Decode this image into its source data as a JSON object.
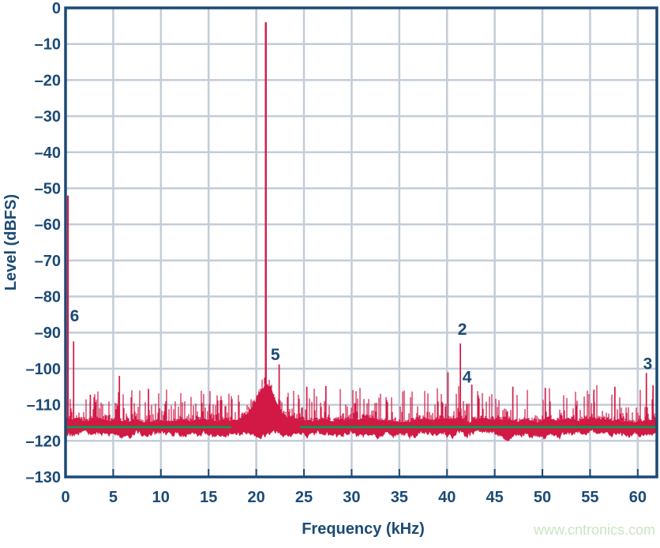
{
  "watermark": "www.cntronics.com",
  "colors": {
    "axis": "#1b4a75",
    "grid": "#c3ccd9",
    "trace": "#d21845",
    "avg_noise_line": "#00a14d",
    "watermark": "#c9e6c2",
    "background": "#ffffff"
  },
  "chart_data": {
    "type": "line",
    "subtype": "fft-noise-spectrum",
    "title": "",
    "xlabel": "Frequency (kHz)",
    "ylabel": "Level (dBFS)",
    "xlim": [
      0,
      62
    ],
    "ylim": [
      -130,
      0
    ],
    "grid": true,
    "legend": null,
    "x_ticks": [
      0,
      5,
      10,
      15,
      20,
      25,
      30,
      35,
      40,
      45,
      50,
      55,
      60
    ],
    "x_tick_labels": [
      "0",
      "5",
      "10",
      "15",
      "20",
      "25",
      "30",
      "35",
      "40",
      "45",
      "50",
      "55",
      "60"
    ],
    "y_ticks": [
      0,
      -10,
      -20,
      -30,
      -40,
      -50,
      -60,
      -70,
      -80,
      -90,
      -100,
      -110,
      -120,
      -130
    ],
    "y_tick_labels": [
      "0",
      "–10",
      "–20",
      "–30",
      "–40",
      "–50",
      "–60",
      "–70",
      "–80",
      "–90",
      "–100",
      "–110",
      "–120",
      "–130"
    ],
    "series": [
      {
        "name": "fft-spectrum",
        "color": "#d21845",
        "carrier": {
          "freq_khz": 21.0,
          "level_dbfs": -4.0
        },
        "dc_spike": {
          "freq_khz": 0.25,
          "level_dbfs": -52.0
        },
        "noise_floor": {
          "solid_top_dbfs": -114.1,
          "solid_bottom_dbfs": -118.2,
          "max_spike_dbfs": -104.5
        },
        "skirt": {
          "center_khz": 21.0,
          "peak_dbfs": -104.5,
          "sigma_khz": 1.05,
          "extent_khz": 3.6
        },
        "spurs": [
          {
            "freq_khz": 0.85,
            "level_dbfs": -92.4,
            "label": "6",
            "label_at": [
              0.95,
              -85.2
            ]
          },
          {
            "freq_khz": 2.6,
            "level_dbfs": -107.2
          },
          {
            "freq_khz": 5.65,
            "level_dbfs": -102.0
          },
          {
            "freq_khz": 8.7,
            "level_dbfs": -105.6
          },
          {
            "freq_khz": 22.4,
            "level_dbfs": -98.8,
            "label": "5",
            "label_at": [
              22.0,
              -96.0
            ]
          },
          {
            "freq_khz": 25.3,
            "level_dbfs": -105.0
          },
          {
            "freq_khz": 27.3,
            "level_dbfs": -104.8
          },
          {
            "freq_khz": 40.1,
            "level_dbfs": -101.0
          },
          {
            "freq_khz": 41.4,
            "level_dbfs": -93.0,
            "label": "2",
            "label_at": [
              41.6,
              -89.0
            ]
          },
          {
            "freq_khz": 42.6,
            "level_dbfs": -104.4,
            "label": "4",
            "label_at": [
              42.1,
              -102.2
            ]
          },
          {
            "freq_khz": 46.9,
            "level_dbfs": -105.0
          },
          {
            "freq_khz": 50.3,
            "level_dbfs": -105.3
          },
          {
            "freq_khz": 55.4,
            "level_dbfs": -105.8
          },
          {
            "freq_khz": 57.6,
            "level_dbfs": -105.0
          },
          {
            "freq_khz": 60.9,
            "level_dbfs": -101.2,
            "label": "3",
            "label_at": [
              61.05,
              -98.5
            ]
          },
          {
            "freq_khz": 61.6,
            "level_dbfs": -104.6
          }
        ]
      },
      {
        "name": "average-noise-floor-line",
        "color": "#00a14d",
        "level_dbfs": -116.2
      }
    ]
  }
}
